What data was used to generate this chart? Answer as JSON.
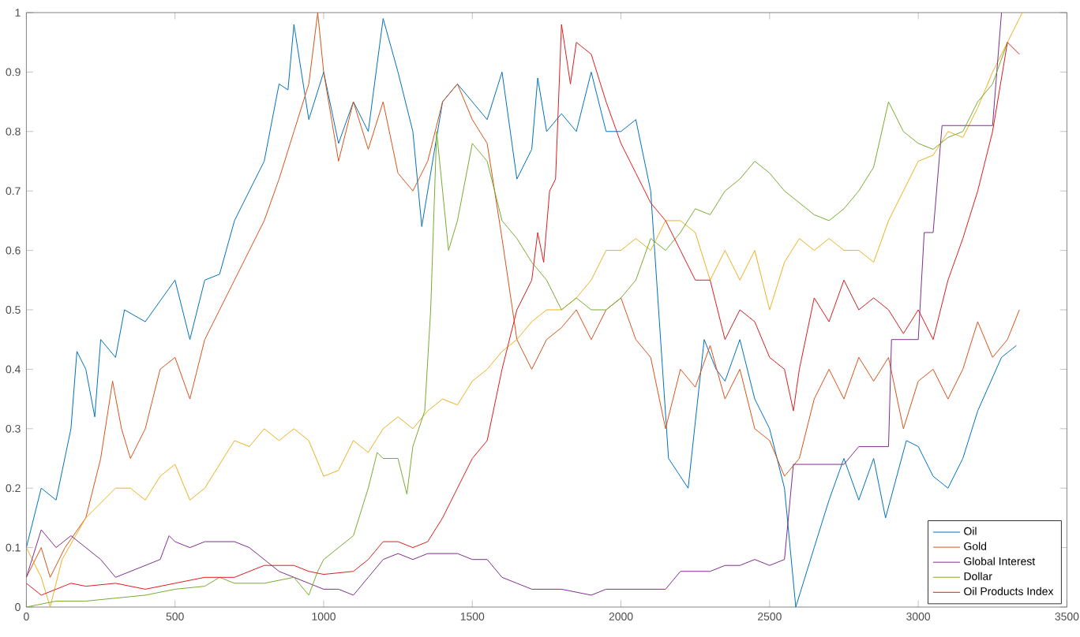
{
  "chart_data": {
    "type": "line",
    "xlim": [
      0,
      3500
    ],
    "ylim": [
      0,
      1
    ],
    "xticks": [
      0,
      500,
      1000,
      1500,
      2000,
      2500,
      3000,
      3500
    ],
    "yticks": [
      0,
      0.1,
      0.2,
      0.3,
      0.4,
      0.5,
      0.6,
      0.7,
      0.8,
      0.9,
      1
    ],
    "grid": false,
    "legend": "bottom right",
    "marker": "none",
    "line_style": "solid",
    "series": [
      {
        "name": "Oil",
        "color": "#0072bd",
        "x": [
          0,
          50,
          100,
          150,
          170,
          200,
          230,
          250,
          300,
          330,
          400,
          500,
          550,
          600,
          650,
          700,
          800,
          850,
          880,
          900,
          950,
          1000,
          1050,
          1100,
          1150,
          1200,
          1250,
          1300,
          1330,
          1400,
          1450,
          1500,
          1550,
          1600,
          1650,
          1700,
          1720,
          1750,
          1800,
          1850,
          1900,
          1950,
          2000,
          2050,
          2100,
          2160,
          2226,
          2280,
          2320,
          2350,
          2400,
          2450,
          2500,
          2550,
          2588,
          2650,
          2700,
          2750,
          2800,
          2850,
          2890,
          2960,
          3000,
          3050,
          3100,
          3150,
          3200,
          3280,
          3330
        ],
        "values": [
          0.1,
          0.2,
          0.18,
          0.3,
          0.43,
          0.4,
          0.32,
          0.45,
          0.42,
          0.5,
          0.48,
          0.55,
          0.45,
          0.55,
          0.56,
          0.65,
          0.75,
          0.88,
          0.87,
          0.98,
          0.82,
          0.9,
          0.78,
          0.85,
          0.8,
          0.99,
          0.9,
          0.8,
          0.64,
          0.85,
          0.88,
          0.85,
          0.82,
          0.9,
          0.72,
          0.77,
          0.89,
          0.8,
          0.83,
          0.8,
          0.9,
          0.8,
          0.8,
          0.82,
          0.7,
          0.25,
          0.2,
          0.45,
          0.4,
          0.38,
          0.45,
          0.35,
          0.3,
          0.2,
          0.0,
          0.1,
          0.18,
          0.25,
          0.18,
          0.25,
          0.15,
          0.28,
          0.27,
          0.22,
          0.2,
          0.25,
          0.33,
          0.42,
          0.44
        ]
      },
      {
        "name": "Gold",
        "color": "#d95319",
        "x": [
          0,
          50,
          80,
          130,
          200,
          250,
          290,
          320,
          350,
          400,
          450,
          500,
          550,
          600,
          650,
          700,
          750,
          800,
          850,
          900,
          950,
          980,
          1000,
          1050,
          1100,
          1150,
          1200,
          1250,
          1300,
          1350,
          1400,
          1450,
          1500,
          1550,
          1600,
          1650,
          1700,
          1750,
          1800,
          1850,
          1900,
          1950,
          2000,
          2050,
          2100,
          2150,
          2200,
          2250,
          2300,
          2350,
          2400,
          2450,
          2500,
          2550,
          2600,
          2650,
          2700,
          2750,
          2800,
          2850,
          2900,
          2950,
          3000,
          3050,
          3100,
          3150,
          3200,
          3250,
          3300,
          3340
        ],
        "values": [
          0.05,
          0.1,
          0.05,
          0.1,
          0.15,
          0.25,
          0.38,
          0.3,
          0.25,
          0.3,
          0.4,
          0.42,
          0.35,
          0.45,
          0.5,
          0.55,
          0.6,
          0.65,
          0.72,
          0.8,
          0.88,
          1.0,
          0.9,
          0.75,
          0.85,
          0.77,
          0.85,
          0.73,
          0.7,
          0.75,
          0.85,
          0.88,
          0.82,
          0.78,
          0.62,
          0.45,
          0.4,
          0.45,
          0.47,
          0.5,
          0.45,
          0.5,
          0.52,
          0.45,
          0.42,
          0.3,
          0.4,
          0.37,
          0.44,
          0.35,
          0.4,
          0.3,
          0.28,
          0.22,
          0.25,
          0.35,
          0.4,
          0.35,
          0.42,
          0.38,
          0.42,
          0.3,
          0.38,
          0.4,
          0.35,
          0.4,
          0.48,
          0.42,
          0.45,
          0.5
        ]
      },
      {
        "color": "#edb120",
        "x": [
          0,
          50,
          80,
          120,
          200,
          300,
          350,
          400,
          450,
          500,
          550,
          600,
          650,
          700,
          750,
          800,
          850,
          900,
          950,
          1000,
          1050,
          1100,
          1150,
          1200,
          1250,
          1300,
          1350,
          1400,
          1450,
          1500,
          1550,
          1600,
          1650,
          1700,
          1750,
          1800,
          1850,
          1900,
          1950,
          2000,
          2050,
          2100,
          2150,
          2200,
          2250,
          2300,
          2350,
          2400,
          2450,
          2500,
          2550,
          2600,
          2650,
          2700,
          2750,
          2800,
          2850,
          2900,
          2950,
          3000,
          3050,
          3100,
          3150,
          3200,
          3250,
          3300,
          3350
        ],
        "values": [
          0.1,
          0.05,
          0.0,
          0.08,
          0.15,
          0.2,
          0.2,
          0.18,
          0.22,
          0.24,
          0.18,
          0.2,
          0.24,
          0.28,
          0.27,
          0.3,
          0.28,
          0.3,
          0.28,
          0.22,
          0.23,
          0.28,
          0.26,
          0.3,
          0.32,
          0.3,
          0.33,
          0.35,
          0.34,
          0.38,
          0.4,
          0.43,
          0.45,
          0.48,
          0.5,
          0.5,
          0.52,
          0.55,
          0.6,
          0.6,
          0.62,
          0.6,
          0.65,
          0.65,
          0.63,
          0.55,
          0.6,
          0.55,
          0.6,
          0.5,
          0.58,
          0.62,
          0.6,
          0.62,
          0.6,
          0.6,
          0.58,
          0.65,
          0.7,
          0.75,
          0.76,
          0.8,
          0.79,
          0.84,
          0.9,
          0.95,
          1.0
        ]
      },
      {
        "name": "Global Interest",
        "color": "#7e2f8e",
        "x": [
          0,
          50,
          100,
          150,
          200,
          250,
          300,
          350,
          400,
          450,
          480,
          500,
          550,
          600,
          700,
          750,
          800,
          850,
          900,
          950,
          1000,
          1050,
          1100,
          1150,
          1200,
          1250,
          1300,
          1350,
          1400,
          1450,
          1500,
          1550,
          1600,
          1650,
          1700,
          1800,
          1900,
          1950,
          2000,
          2100,
          2150,
          2200,
          2250,
          2300,
          2350,
          2400,
          2450,
          2500,
          2550,
          2580,
          2650,
          2700,
          2750,
          2800,
          2850,
          2900,
          2910,
          2950,
          3000,
          3020,
          3050,
          3080,
          3150,
          3200,
          3250,
          3280
        ],
        "values": [
          0.05,
          0.13,
          0.1,
          0.12,
          0.1,
          0.08,
          0.05,
          0.06,
          0.07,
          0.08,
          0.12,
          0.11,
          0.1,
          0.11,
          0.11,
          0.1,
          0.08,
          0.06,
          0.05,
          0.04,
          0.03,
          0.03,
          0.02,
          0.05,
          0.08,
          0.09,
          0.08,
          0.09,
          0.09,
          0.09,
          0.08,
          0.08,
          0.05,
          0.04,
          0.03,
          0.03,
          0.02,
          0.03,
          0.03,
          0.03,
          0.03,
          0.06,
          0.06,
          0.06,
          0.07,
          0.07,
          0.08,
          0.07,
          0.08,
          0.24,
          0.24,
          0.24,
          0.24,
          0.27,
          0.27,
          0.27,
          0.45,
          0.45,
          0.45,
          0.63,
          0.63,
          0.81,
          0.81,
          0.81,
          0.81,
          1.0
        ]
      },
      {
        "name": "Dollar",
        "color": "#77ac30",
        "x": [
          0,
          100,
          200,
          300,
          400,
          500,
          600,
          650,
          700,
          800,
          900,
          950,
          980,
          1000,
          1050,
          1100,
          1150,
          1180,
          1200,
          1250,
          1280,
          1300,
          1340,
          1360,
          1380,
          1400,
          1420,
          1450,
          1500,
          1550,
          1600,
          1650,
          1700,
          1750,
          1800,
          1850,
          1900,
          1950,
          2000,
          2050,
          2100,
          2150,
          2200,
          2250,
          2300,
          2350,
          2400,
          2450,
          2500,
          2550,
          2600,
          2650,
          2700,
          2750,
          2800,
          2850,
          2900,
          2950,
          3000,
          3050,
          3100,
          3150,
          3200,
          3250,
          3300
        ],
        "values": [
          0.0,
          0.01,
          0.01,
          0.015,
          0.02,
          0.03,
          0.035,
          0.05,
          0.04,
          0.04,
          0.05,
          0.02,
          0.06,
          0.08,
          0.1,
          0.12,
          0.2,
          0.26,
          0.25,
          0.25,
          0.19,
          0.27,
          0.33,
          0.5,
          0.8,
          0.7,
          0.6,
          0.65,
          0.78,
          0.75,
          0.65,
          0.62,
          0.58,
          0.55,
          0.5,
          0.52,
          0.5,
          0.5,
          0.52,
          0.55,
          0.62,
          0.6,
          0.63,
          0.67,
          0.66,
          0.7,
          0.72,
          0.75,
          0.73,
          0.7,
          0.68,
          0.66,
          0.65,
          0.67,
          0.7,
          0.74,
          0.85,
          0.8,
          0.78,
          0.77,
          0.79,
          0.8,
          0.85,
          0.88,
          0.95
        ]
      },
      {
        "name": "Oil Products Index",
        "color": "#dd1c1c",
        "x": [
          0,
          50,
          100,
          150,
          200,
          300,
          400,
          500,
          600,
          700,
          800,
          900,
          950,
          1000,
          1100,
          1150,
          1200,
          1250,
          1300,
          1350,
          1400,
          1450,
          1500,
          1550,
          1600,
          1650,
          1700,
          1720,
          1740,
          1760,
          1780,
          1800,
          1830,
          1850,
          1900,
          1950,
          2000,
          2050,
          2100,
          2150,
          2200,
          2250,
          2300,
          2350,
          2400,
          2450,
          2500,
          2550,
          2580,
          2600,
          2650,
          2700,
          2750,
          2800,
          2850,
          2900,
          2950,
          3000,
          3050,
          3100,
          3150,
          3200,
          3250,
          3300,
          3340
        ],
        "values": [
          0.04,
          0.02,
          0.03,
          0.04,
          0.035,
          0.04,
          0.03,
          0.04,
          0.05,
          0.05,
          0.07,
          0.07,
          0.06,
          0.055,
          0.06,
          0.08,
          0.11,
          0.11,
          0.1,
          0.11,
          0.15,
          0.2,
          0.25,
          0.28,
          0.4,
          0.5,
          0.55,
          0.63,
          0.58,
          0.7,
          0.72,
          0.98,
          0.88,
          0.95,
          0.93,
          0.85,
          0.78,
          0.73,
          0.68,
          0.65,
          0.6,
          0.55,
          0.55,
          0.45,
          0.5,
          0.48,
          0.42,
          0.4,
          0.33,
          0.4,
          0.52,
          0.48,
          0.55,
          0.5,
          0.52,
          0.5,
          0.46,
          0.5,
          0.45,
          0.55,
          0.62,
          0.7,
          0.8,
          0.95,
          0.93
        ]
      }
    ]
  }
}
